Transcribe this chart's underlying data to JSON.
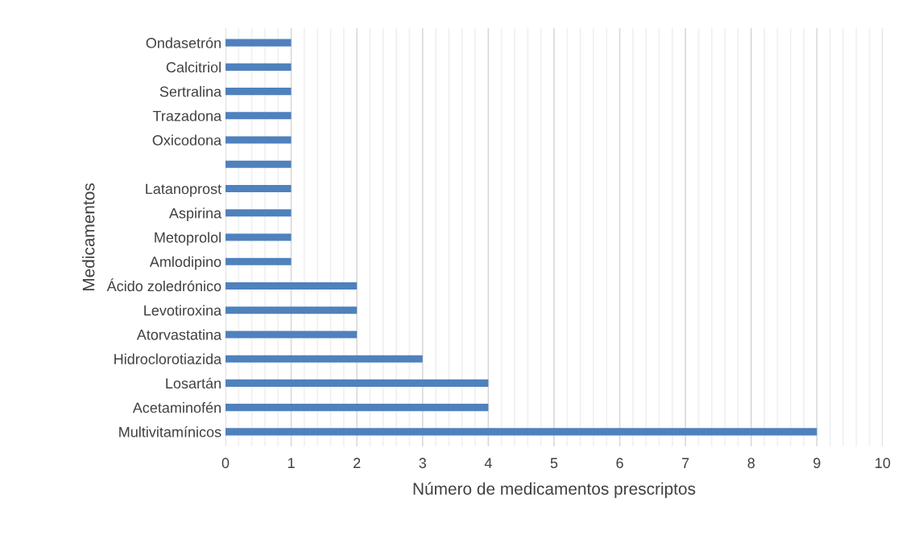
{
  "chart_data": {
    "type": "bar",
    "orientation": "horizontal",
    "xlabel": "Número de medicamentos prescriptos",
    "ylabel": "Medicamentos",
    "categories": [
      "Ondasetrón",
      "Calcitriol",
      "Sertralina",
      "Trazadona",
      "Oxicodona",
      null,
      "Latanoprost",
      "Aspirina",
      "Metoprolol",
      "Amlodipino",
      "Ácido zoledrónico",
      "Levotiroxina",
      "Atorvastatina",
      "Hidroclorotiazida",
      "Losartán",
      "Acetaminofén",
      "Multivitamínicos"
    ],
    "values": [
      1,
      1,
      1,
      1,
      1,
      1,
      1,
      1,
      1,
      1,
      2,
      2,
      2,
      3,
      4,
      4,
      9
    ],
    "color": "#4f81bd",
    "xlim": [
      0,
      10
    ],
    "xticks": [
      0,
      {
        "value": 0.2,
        "label": null
      },
      {
        "value": 0.4,
        "label": null
      },
      {
        "value": 0.6,
        "label": null
      },
      {
        "value": 0.8,
        "label": null
      },
      1,
      {
        "value": 1.2,
        "label": null
      },
      {
        "value": 1.4,
        "label": null
      },
      {
        "value": 1.6,
        "label": null
      },
      {
        "value": 1.8,
        "label": null
      },
      2,
      {
        "value": 2.2,
        "label": null
      },
      {
        "value": 2.4,
        "label": null
      },
      {
        "value": 2.6,
        "label": null
      },
      {
        "value": 2.8,
        "label": null
      },
      3,
      {
        "value": 3.2,
        "label": null
      },
      {
        "value": 3.4,
        "label": null
      },
      {
        "value": 3.6,
        "label": null
      },
      {
        "value": 3.8,
        "label": null
      },
      4,
      {
        "value": 4.2,
        "label": null
      },
      {
        "value": 4.4,
        "label": null
      },
      {
        "value": 4.6,
        "label": null
      },
      {
        "value": 4.8,
        "label": null
      },
      5,
      {
        "value": 5.2,
        "label": null
      },
      {
        "value": 5.4,
        "label": null
      },
      {
        "value": 5.6,
        "label": null
      },
      {
        "value": 5.8,
        "label": null
      },
      6,
      {
        "value": 6.2,
        "label": null
      },
      {
        "value": 6.4,
        "label": null
      },
      {
        "value": 6.6,
        "label": null
      },
      {
        "value": 6.8,
        "label": null
      },
      7,
      {
        "value": 7.2,
        "label": null
      },
      {
        "value": 7.4,
        "label": null
      },
      {
        "value": 7.6,
        "label": null
      },
      {
        "value": 7.8,
        "label": null
      },
      8,
      {
        "value": 8.2,
        "label": null
      },
      {
        "value": 8.4,
        "label": null
      },
      {
        "value": 8.6,
        "label": null
      },
      {
        "value": 8.8,
        "label": null
      },
      9,
      {
        "value": 9.2,
        "label": null
      },
      {
        "value": 9.4,
        "label": null
      },
      {
        "value": 9.6,
        "label": null
      },
      {
        "value": 9.8,
        "label": null
      },
      10
    ],
    "grid": "x",
    "legend": false
  }
}
